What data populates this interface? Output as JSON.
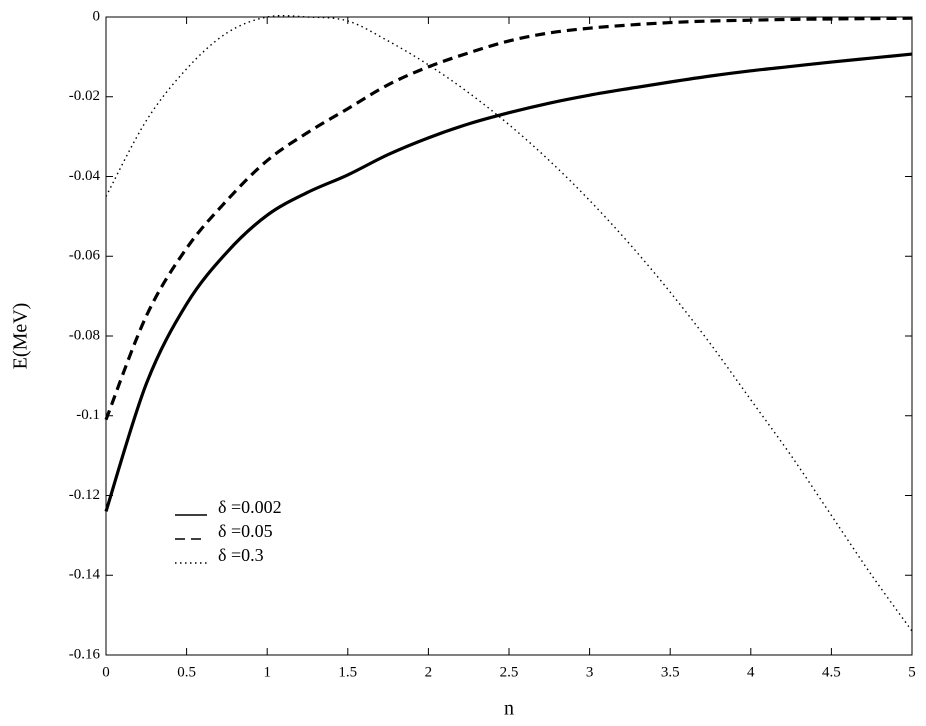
{
  "chart_data": {
    "type": "line",
    "x_label": "n",
    "y_label": "E(MeV)",
    "x": [
      0,
      0.25,
      0.5,
      0.75,
      1,
      1.25,
      1.5,
      1.75,
      2,
      2.25,
      2.5,
      2.75,
      3,
      3.25,
      3.5,
      3.75,
      4,
      4.25,
      4.5,
      4.75,
      5
    ],
    "series": [
      {
        "name": "δ =0.002",
        "color": "#000000",
        "dash": "solid",
        "values": [
          -0.124,
          -0.092,
          -0.072,
          -0.059,
          -0.0497,
          -0.044,
          -0.0396,
          -0.0345,
          -0.0303,
          -0.0268,
          -0.024,
          -0.0216,
          -0.0196,
          -0.0179,
          -0.0163,
          -0.0148,
          -0.0135,
          -0.0124,
          -0.0113,
          -0.0103,
          -0.0093
        ]
      },
      {
        "name": "δ =0.05",
        "color": "#000000",
        "dash": "dashed",
        "values": [
          -0.101,
          -0.075,
          -0.058,
          -0.046,
          -0.036,
          -0.029,
          -0.023,
          -0.017,
          -0.0125,
          -0.009,
          -0.006,
          -0.004,
          -0.0028,
          -0.002,
          -0.0014,
          -0.001,
          -0.0008,
          -0.0006,
          -0.0005,
          -0.0004,
          -0.0003
        ]
      },
      {
        "name": "δ =0.3",
        "color": "#000000",
        "dash": "dotted",
        "values": [
          -0.045,
          -0.026,
          -0.013,
          -0.004,
          0,
          0,
          -0.001,
          -0.006,
          -0.012,
          -0.019,
          -0.027,
          -0.036,
          -0.046,
          -0.057,
          -0.069,
          -0.082,
          -0.096,
          -0.11,
          -0.125,
          -0.14,
          -0.154
        ]
      }
    ],
    "xlim": [
      0,
      5
    ],
    "ylim": [
      -0.16,
      0
    ],
    "xticks": [
      0,
      0.5,
      1,
      1.5,
      2,
      2.5,
      3,
      3.5,
      4,
      4.5,
      5
    ],
    "yticks": [
      0,
      -0.02,
      -0.04,
      -0.06,
      -0.08,
      -0.1,
      -0.12,
      -0.14,
      -0.16
    ],
    "grid": false,
    "legend_position": "lower left"
  }
}
